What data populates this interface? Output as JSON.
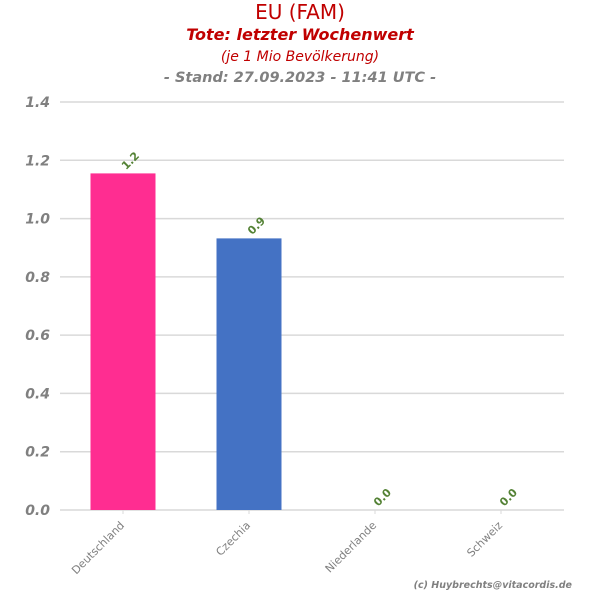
{
  "chart_data": {
    "type": "bar",
    "title": "EU (FAM)",
    "subtitle": "Tote: letzter Wochenwert",
    "note": "(je 1 Mio Bevölkerung)",
    "stand": "- Stand: 27.09.2023 - 11:41 UTC -",
    "categories": [
      "Deutschland",
      "Czechia",
      "Niederlande",
      "Schweiz"
    ],
    "values": [
      1.155,
      0.932,
      0.0,
      0.0
    ],
    "value_labels": [
      "1.2",
      "0.9",
      "0.0",
      "0.0"
    ],
    "colors": [
      "#ff2d91",
      "#4472c4",
      "#4472c4",
      "#4472c4"
    ],
    "ylim": [
      0,
      1.4
    ],
    "yticks": [
      0.0,
      0.2,
      0.4,
      0.6,
      0.8,
      1.0,
      1.2,
      1.4
    ],
    "ytick_labels": [
      "0.0",
      "0.2",
      "0.4",
      "0.6",
      "0.8",
      "1.0",
      "1.2",
      "1.4"
    ],
    "grid": true,
    "label_color": "#548235",
    "grid_color": "#d9d9d9",
    "tick_color": "#808080"
  },
  "credit": "(c) Huybrechts@vitacordis.de"
}
